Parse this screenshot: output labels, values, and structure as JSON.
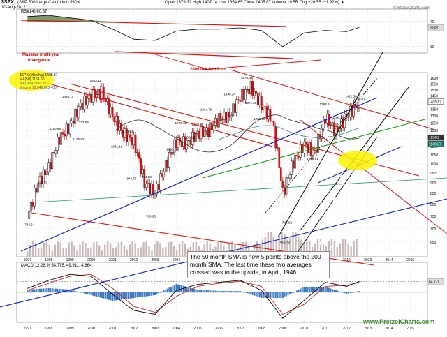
{
  "header": {
    "symbol": "$SPX",
    "name": "(S&P 500 Large Cap Index) INDX",
    "date": "10-Aug-2012",
    "ohlc": "Open 1379.32  High 1407.14  Low 1354.65  Close 1405.87  Volume 19.5B  Chg +26.55 (+1.92%) ▲",
    "copyright": "© StockCharts.com"
  },
  "legend": {
    "main": "$SPX (Monthly) 1405.87",
    "ma50": "MA(50) 1154.90",
    "ma200": "MA(200) 1149.37",
    "volume": "Volume 19,546,603,408"
  },
  "rsi_label": "RSI(14) 60.87",
  "macd_label": "MACD(12,26,9) 54.775, 49.911, 4.864",
  "annotations": {
    "divergence": [
      "Massive multi-year",
      "divergence"
    ],
    "low_confirms": "2009 low confirms",
    "note": "The 50 month SMA is now 5 points above the 200 month SMA.  The last time these two averages crossed was to the upside, in April, 1946."
  },
  "watermark": "www.PretzelCharts.com",
  "colors": {
    "up": "#000000",
    "down": "#d01010",
    "ma50": "#2a2a2a",
    "ma200": "#2f8f7f",
    "trend_red": "#e01010",
    "trend_blue": "#1020d0",
    "trend_green": "#1a9a1a",
    "trend_black": "#000000",
    "volume": "#c8b8b8",
    "highlight": "#fff200",
    "rsi_fill": "#4a7a3a",
    "macd_hist": "#3a78c0",
    "macd_signal": "#d02020"
  },
  "chart_data": [
    {
      "type": "line",
      "title": "RSI(14)",
      "y_ticks": [
        70,
        30
      ],
      "x": [
        1997.0,
        1998.0,
        1999.0,
        2000.0,
        2001.0,
        2002.0,
        2003.0,
        2004.0,
        2005.0,
        2006.0,
        2007.0,
        2008.0,
        2009.0,
        2010.0,
        2011.0,
        2012.0,
        2012.6
      ],
      "values": [
        78,
        80,
        76,
        72,
        58,
        42,
        40,
        55,
        58,
        58,
        60,
        56,
        30,
        52,
        56,
        54,
        60.87
      ]
    },
    {
      "type": "candlestick",
      "title": "$SPX (Monthly) 1405.87",
      "scale": "log",
      "ylim": [
        600,
        1650
      ],
      "y_ticks": [
        1600,
        1550,
        1500,
        1450,
        1400,
        1350,
        1300,
        1250,
        1200,
        1150,
        1100,
        1050,
        1000,
        950,
        900,
        850,
        800,
        750,
        700,
        650
      ],
      "x_ticks": [
        "1997",
        "1998",
        "1999",
        "2000",
        "2001",
        "2002",
        "2003",
        "2004",
        "2005",
        "2006",
        "2007",
        "2008",
        "2009",
        "2010",
        "2011",
        "2012",
        "2013",
        "2014",
        "2015"
      ],
      "x": [
        1997.0,
        1997.5,
        1998.0,
        1998.5,
        1999.0,
        1999.5,
        2000.0,
        2000.5,
        2001.0,
        2001.5,
        2002.0,
        2002.5,
        2003.0,
        2003.5,
        2004.0,
        2004.5,
        2005.0,
        2005.5,
        2006.0,
        2006.5,
        2007.0,
        2007.5,
        2008.0,
        2008.5,
        2009.0,
        2009.5,
        2010.0,
        2010.5,
        2011.0,
        2011.5,
        2012.0,
        2012.6
      ],
      "close": [
        740,
        900,
        980,
        1150,
        1230,
        1380,
        1450,
        1480,
        1300,
        1180,
        1130,
        900,
        850,
        990,
        1130,
        1120,
        1180,
        1200,
        1280,
        1300,
        1440,
        1520,
        1380,
        1270,
        850,
        1010,
        1110,
        1060,
        1290,
        1190,
        1300,
        1405.87
      ],
      "price_labels": [
        {
          "x": 1997.1,
          "label": "733.54"
        },
        {
          "x": 1997.7,
          "label": "923.32"
        },
        {
          "x": 1998.3,
          "label": "1190.58"
        },
        {
          "x": 1998.9,
          "label": "1420.14"
        },
        {
          "x": 1999.4,
          "label": "1125.82"
        },
        {
          "x": 1999.6,
          "label": "1233.66"
        },
        {
          "x": 2000.2,
          "label": "1553.11"
        },
        {
          "x": 2001.2,
          "label": "1081.19"
        },
        {
          "x": 2001.7,
          "label": "1173.94"
        },
        {
          "x": 2001.9,
          "label": "944.75"
        },
        {
          "x": 2002.6,
          "label": "954.28"
        },
        {
          "x": 2002.8,
          "label": "768.63"
        },
        {
          "x": 2003.8,
          "label": "1063.23"
        },
        {
          "x": 2004.2,
          "label": "1229.11"
        },
        {
          "x": 2004.6,
          "label": "1136.15"
        },
        {
          "x": 2005.0,
          "label": "1219.25"
        },
        {
          "x": 2005.4,
          "label": "1324.79"
        },
        {
          "x": 2006.5,
          "label": "1440.24"
        },
        {
          "x": 2007.3,
          "label": "1576.09"
        },
        {
          "x": 2007.5,
          "label": "1371.60"
        },
        {
          "x": 2007.9,
          "label": "1256.98"
        },
        {
          "x": 2009.1,
          "label": "666.79"
        },
        {
          "x": 2009.2,
          "label": "741.92"
        },
        {
          "x": 2010.4,
          "label": "1010.91"
        },
        {
          "x": 2011.0,
          "label": "1363.61"
        },
        {
          "x": 2011.6,
          "label": "1266.74"
        },
        {
          "x": 2012.2,
          "label": "1422.38"
        },
        {
          "x": 2012.6,
          "label": "1405.87"
        }
      ],
      "moving_averages": [
        {
          "name": "MA(50)",
          "value": 1154.9
        },
        {
          "name": "MA(200)",
          "value": 1149.37
        }
      ]
    },
    {
      "type": "line",
      "title": "MACD(12,26,9)",
      "x_ticks": [
        "1997",
        "1998",
        "1999",
        "2000",
        "2001",
        "2002",
        "2003",
        "2004",
        "2005",
        "2006",
        "2007",
        "2008",
        "2009",
        "2010",
        "2011",
        "2012",
        "2013",
        "2014",
        "2015"
      ],
      "x": [
        1997.0,
        1998.0,
        1999.0,
        2000.0,
        2001.0,
        2002.0,
        2003.0,
        2004.0,
        2005.0,
        2006.0,
        2007.0,
        2008.0,
        2009.0,
        2010.0,
        2011.0,
        2012.0,
        2012.6
      ],
      "series": [
        {
          "name": "MACD",
          "values": [
            20,
            60,
            90,
            80,
            -10,
            -90,
            -110,
            10,
            40,
            50,
            60,
            10,
            -130,
            -40,
            50,
            30,
            54.775
          ]
        },
        {
          "name": "Signal",
          "values": [
            10,
            45,
            80,
            90,
            20,
            -70,
            -100,
            -20,
            30,
            45,
            55,
            30,
            -110,
            -60,
            30,
            35,
            49.911
          ]
        }
      ],
      "histogram_last": 4.864
    }
  ]
}
